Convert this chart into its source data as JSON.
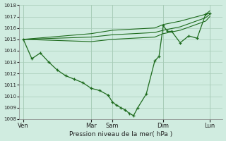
{
  "bg_color": "#d0ece0",
  "line_color": "#1e6b1e",
  "grid_color": "#a8ccb8",
  "xlabel": "Pression niveau de la mer( hPa )",
  "ylim": [
    1008,
    1018
  ],
  "yticks": [
    1008,
    1009,
    1010,
    1011,
    1012,
    1013,
    1014,
    1015,
    1016,
    1017,
    1018
  ],
  "xlim": [
    0,
    24
  ],
  "day_labels": [
    "Ven",
    "Mar",
    "Sam",
    "Dim",
    "Lun"
  ],
  "day_positions": [
    0.5,
    8.5,
    11.0,
    17.0,
    22.5
  ],
  "main_x": [
    0.5,
    1.5,
    2.5,
    3.5,
    4.5,
    5.5,
    6.5,
    7.5,
    8.5,
    9.5,
    10.5,
    11.0,
    11.5,
    12.0,
    12.5,
    13.0,
    13.5,
    14.0,
    15.0,
    16.0,
    16.5,
    17.0,
    17.5,
    18.0,
    19.0,
    20.0,
    21.0,
    22.0,
    22.5
  ],
  "main_y": [
    1015.0,
    1013.3,
    1013.8,
    1013.0,
    1012.3,
    1011.8,
    1011.5,
    1011.2,
    1010.7,
    1010.5,
    1010.1,
    1009.5,
    1009.2,
    1009.0,
    1008.8,
    1008.5,
    1008.3,
    1009.0,
    1010.2,
    1013.1,
    1013.5,
    1016.2,
    1015.7,
    1015.7,
    1014.7,
    1015.3,
    1015.1,
    1017.2,
    1017.3
  ],
  "band1_x": [
    0.5,
    8.5,
    11.0,
    16.0,
    17.0,
    19.0,
    22.0,
    22.5
  ],
  "band1_y": [
    1015.0,
    1015.5,
    1015.8,
    1016.0,
    1016.3,
    1016.6,
    1017.2,
    1017.5
  ],
  "band2_x": [
    0.5,
    8.5,
    11.0,
    16.0,
    17.0,
    19.0,
    22.0,
    22.5
  ],
  "band2_y": [
    1015.0,
    1015.2,
    1015.4,
    1015.6,
    1015.8,
    1016.1,
    1016.9,
    1017.2
  ],
  "band3_x": [
    0.5,
    8.5,
    11.0,
    16.0,
    17.0,
    19.0,
    22.0,
    22.5
  ],
  "band3_y": [
    1015.0,
    1014.8,
    1015.0,
    1015.2,
    1015.5,
    1015.8,
    1016.6,
    1017.0
  ]
}
